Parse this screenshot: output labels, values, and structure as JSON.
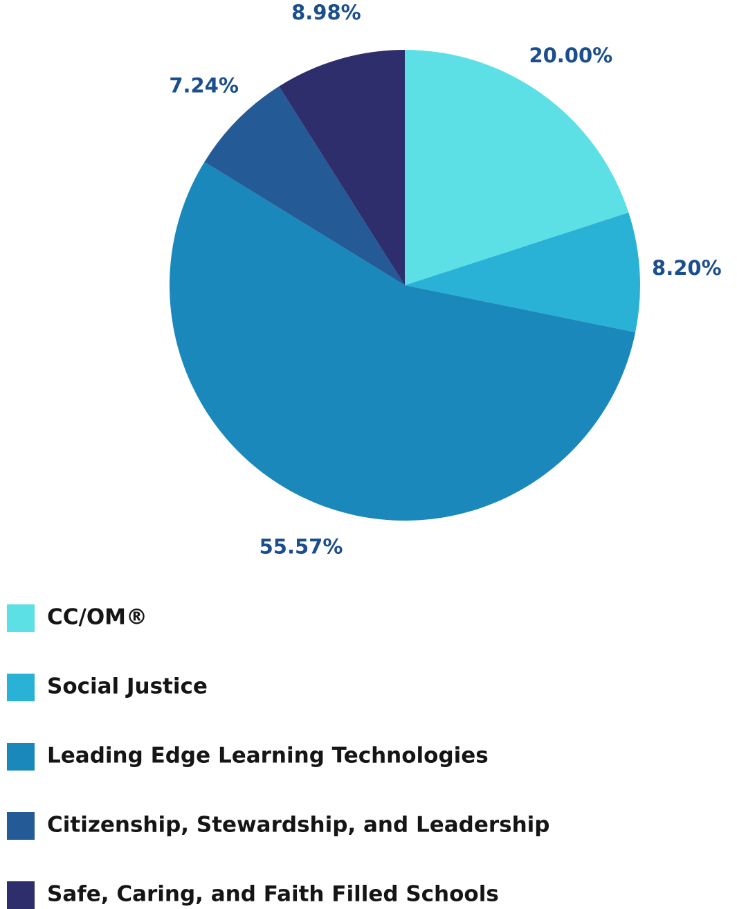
{
  "chart_data": {
    "type": "pie",
    "categories": [
      "CC/OM®",
      "Social Justice",
      "Leading Edge Learning Technologies",
      "Citizenship, Stewardship, and Leadership",
      "Safe, Caring, and Faith Filled Schools"
    ],
    "values": [
      20.0,
      8.2,
      55.57,
      7.24,
      8.98
    ],
    "value_labels": [
      "20.00%",
      "8.20%",
      "55.57%",
      "7.24%",
      "8.98%"
    ],
    "colors": [
      "#5ce0e6",
      "#29b2d6",
      "#1a88bb",
      "#245a95",
      "#2d2e6b"
    ]
  }
}
